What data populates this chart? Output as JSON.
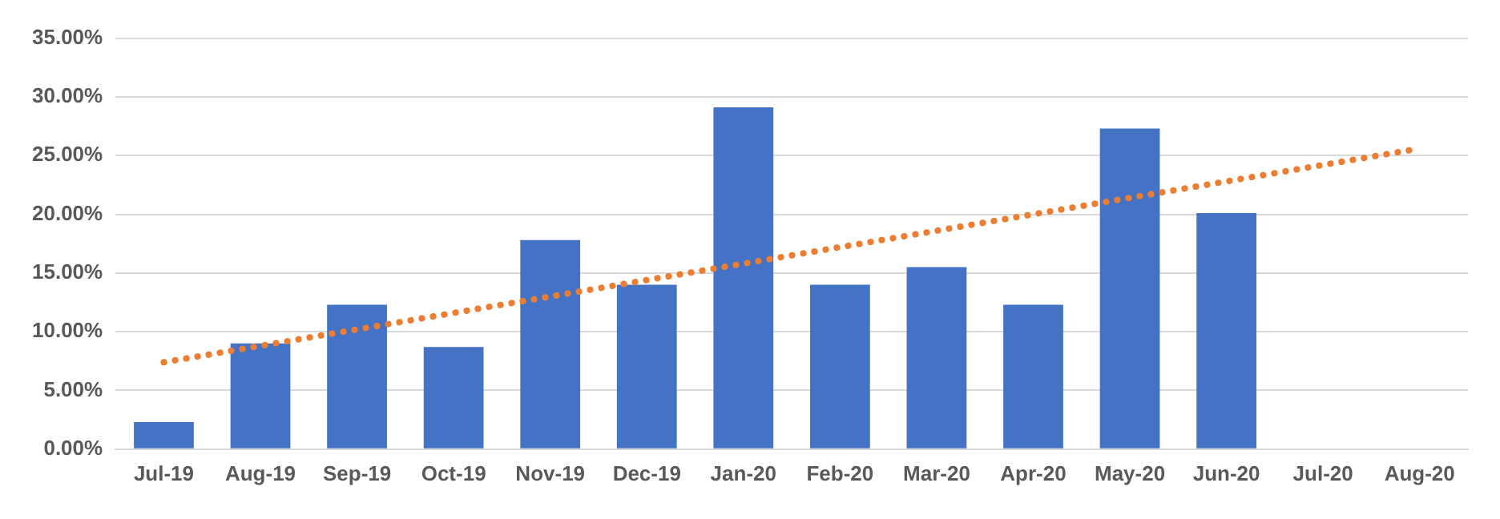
{
  "chart_data": {
    "type": "bar",
    "categories": [
      "Jul-19",
      "Aug-19",
      "Sep-19",
      "Oct-19",
      "Nov-19",
      "Dec-19",
      "Jan-20",
      "Feb-20",
      "Mar-20",
      "Apr-20",
      "May-20",
      "Jun-20",
      "Jul-20",
      "Aug-20"
    ],
    "series": [
      {
        "color": "#4472c4",
        "values": [
          2.3,
          9.0,
          12.3,
          8.7,
          17.8,
          14.0,
          29.1,
          14.0,
          15.5,
          12.3,
          27.3,
          20.1,
          null,
          null
        ]
      },
      {
        "type": "line",
        "color": "#ed7d31",
        "line_style": "dotted",
        "marker": "none",
        "x": [
          "Jul-19",
          "Aug-20"
        ],
        "values": [
          7.4,
          25.6
        ]
      }
    ],
    "ylim": [
      0,
      35
    ],
    "yticks": [
      {
        "value": 0,
        "label": "0.00%"
      },
      {
        "value": 5,
        "label": "5.00%"
      },
      {
        "value": 10,
        "label": "10.00%"
      },
      {
        "value": 15,
        "label": "15.00%"
      },
      {
        "value": 20,
        "label": "20.00%"
      },
      {
        "value": 25,
        "label": "25.00%"
      },
      {
        "value": 30,
        "label": "30.00%"
      },
      {
        "value": 35,
        "label": "35.00%"
      }
    ],
    "grid": "y",
    "legend": false
  }
}
